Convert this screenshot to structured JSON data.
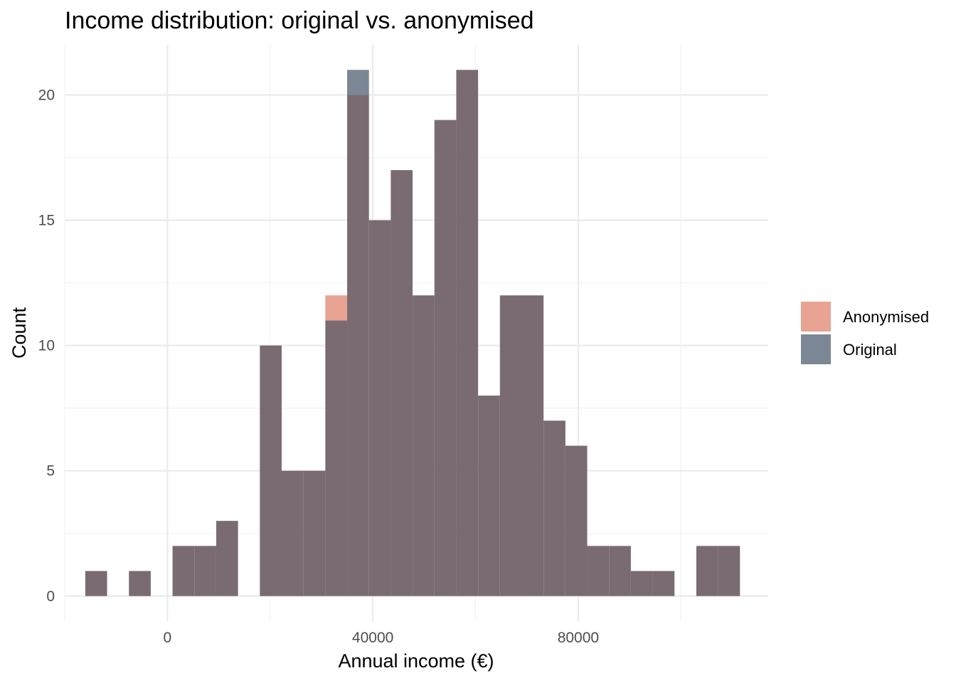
{
  "chart_data": {
    "type": "bar",
    "subtype": "overlaid-histogram",
    "title": "Income distribution: original vs. anonymised",
    "xlabel": "Annual income (€)",
    "ylabel": "Count",
    "xlim": [
      -20000,
      117000
    ],
    "ylim": [
      -1,
      22
    ],
    "x_ticks": [
      0,
      40000,
      80000
    ],
    "x_tick_labels": [
      "0",
      "40000",
      "80000"
    ],
    "y_ticks": [
      0,
      5,
      10,
      15,
      20
    ],
    "y_tick_labels": [
      "0",
      "5",
      "10",
      "15",
      "20"
    ],
    "grid": true,
    "legend_position": "right",
    "bin_width": 4250,
    "bin_starts": [
      -16000,
      -11750,
      -7500,
      -3250,
      1000,
      5250,
      9500,
      13750,
      18000,
      22250,
      26500,
      30750,
      35000,
      39250,
      43500,
      47750,
      52000,
      56250,
      60500,
      64750,
      69000,
      73250,
      77500,
      81750,
      86000,
      90250,
      94500,
      98750,
      103000,
      107250
    ],
    "series": [
      {
        "name": "Anonymised",
        "color": "#e8a393",
        "values": [
          1,
          0,
          1,
          0,
          2,
          2,
          3,
          0,
          10,
          5,
          5,
          12,
          20,
          15,
          17,
          12,
          19,
          21,
          8,
          12,
          12,
          7,
          6,
          2,
          2,
          1,
          1,
          0,
          2,
          2
        ]
      },
      {
        "name": "Original",
        "color": "#7b8794",
        "values": [
          1,
          0,
          1,
          0,
          2,
          2,
          3,
          0,
          10,
          5,
          5,
          11,
          21,
          15,
          17,
          12,
          19,
          21,
          8,
          12,
          12,
          7,
          6,
          2,
          2,
          1,
          1,
          0,
          2,
          2
        ]
      }
    ],
    "overlap_color": "#7a6b72"
  }
}
